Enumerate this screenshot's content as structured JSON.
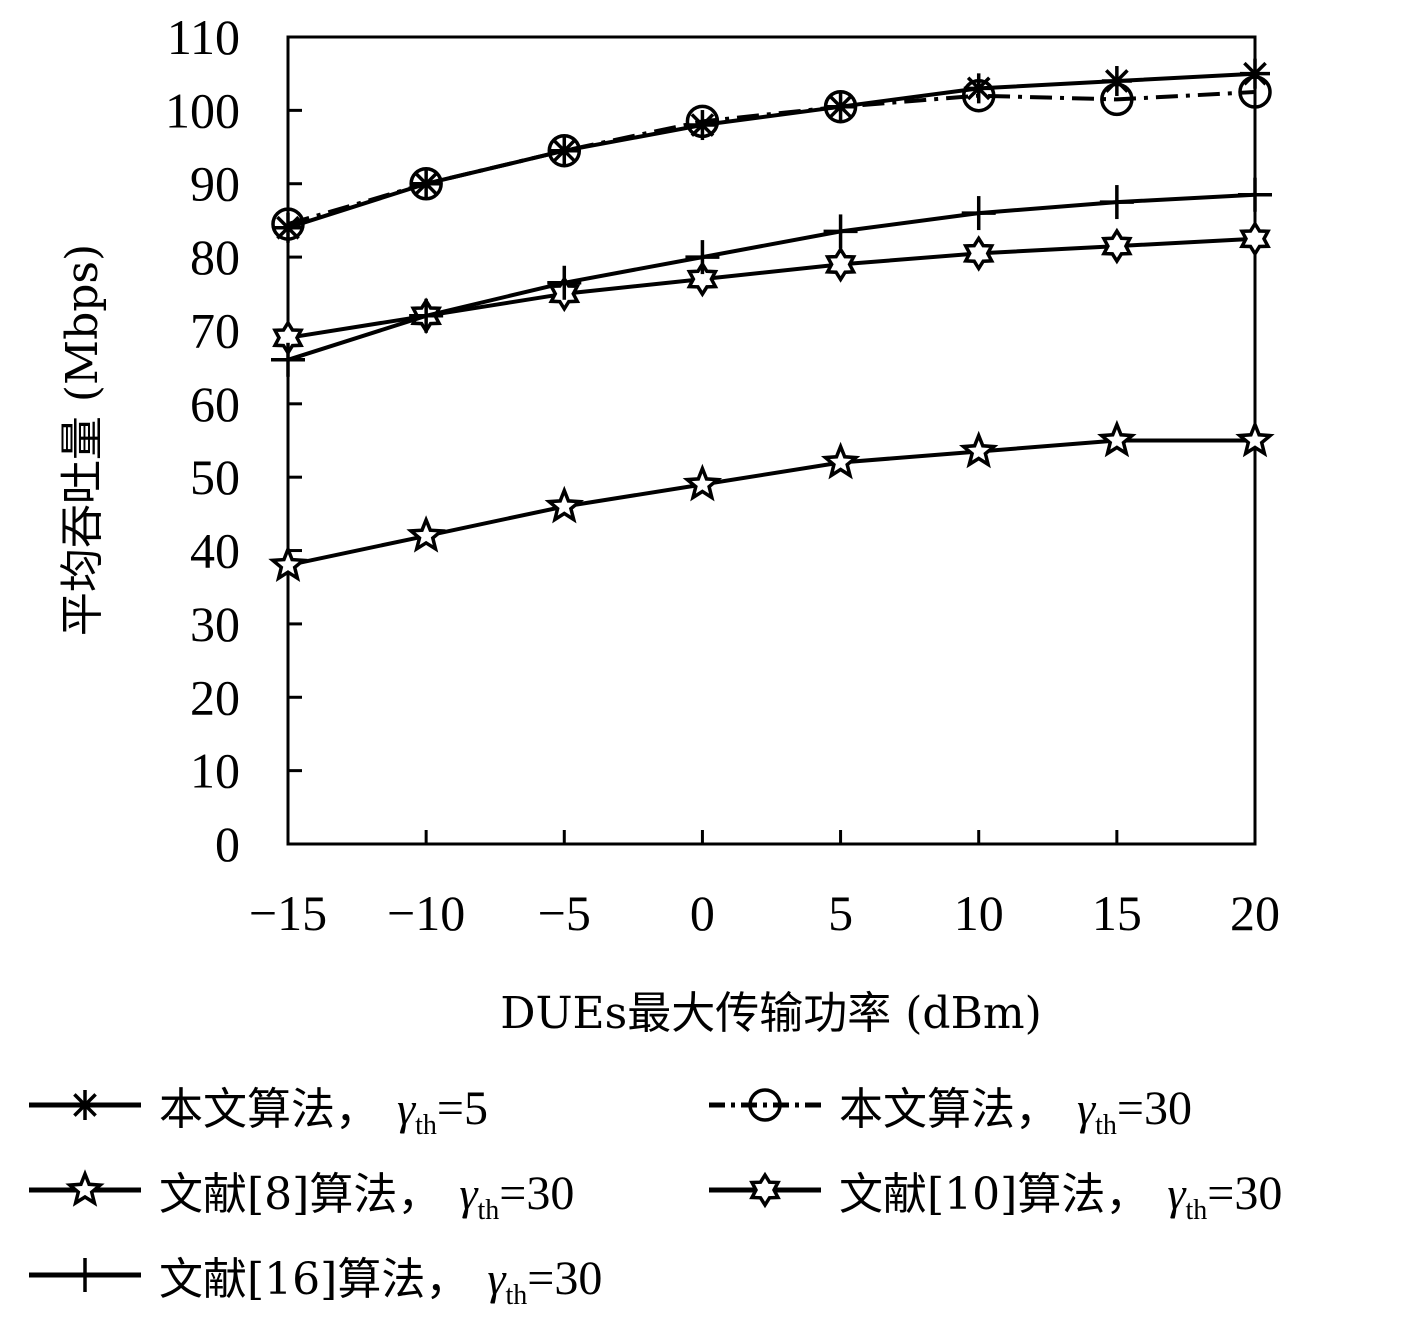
{
  "chart_data": {
    "type": "line",
    "title": "",
    "xlabel": "DUEs最大传输功率 (dBm)",
    "ylabel": "平均吞吐量 (Mbps)",
    "x": [
      -15,
      -10,
      -5,
      0,
      5,
      10,
      15,
      20
    ],
    "x_tick_labels": [
      "−15",
      "−10",
      "−5",
      "0",
      "5",
      "10",
      "15",
      "20"
    ],
    "y_ticks": [
      0,
      10,
      20,
      30,
      40,
      50,
      60,
      70,
      80,
      90,
      100,
      110
    ],
    "xlim": [
      -15,
      20
    ],
    "ylim": [
      0,
      110
    ],
    "grid": false,
    "legend_position": "bottom",
    "series": [
      {
        "name": "本文算法，",
        "gamma_value": "5",
        "marker": "asterisk",
        "dash": "solid",
        "values": [
          84,
          90,
          94.5,
          98,
          100.5,
          103,
          104,
          105
        ]
      },
      {
        "name": "本文算法，",
        "gamma_value": "30",
        "marker": "circle",
        "dash": "dashdot",
        "values": [
          84.5,
          90,
          94.5,
          98.5,
          100.5,
          102,
          101.5,
          102.5
        ]
      },
      {
        "name": "文献[8]算法，",
        "gamma_value": "30",
        "marker": "star",
        "dash": "solid",
        "values": [
          38,
          42,
          46,
          49,
          52,
          53.5,
          55,
          55
        ]
      },
      {
        "name": "文献[10]算法，",
        "gamma_value": "30",
        "marker": "hexagram",
        "dash": "solid",
        "values": [
          69,
          72,
          75,
          77,
          79,
          80.5,
          81.5,
          82.5
        ]
      },
      {
        "name": "文献[16]算法，",
        "gamma_value": "30",
        "marker": "plus",
        "dash": "solid",
        "values": [
          66,
          72,
          76.5,
          80,
          83.5,
          86,
          87.5,
          88.5
        ]
      }
    ],
    "gamma_symbol": "γ",
    "gamma_subscript": "th",
    "equals": "="
  }
}
